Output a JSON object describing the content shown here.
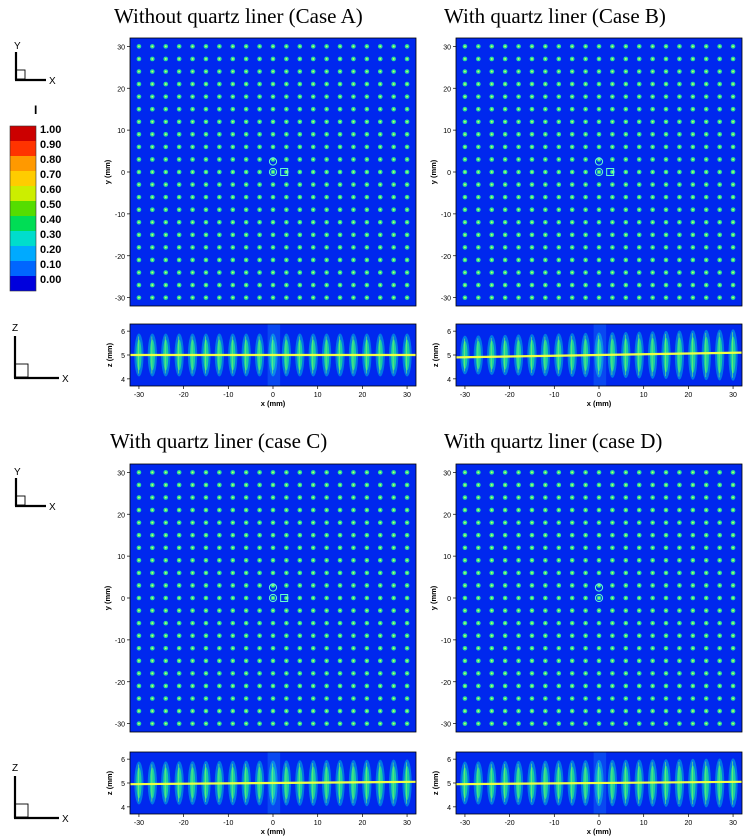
{
  "titles": {
    "a": "Without quartz liner (Case A)",
    "b": "With quartz liner (Case B)",
    "c": "With quartz liner (case C)",
    "d": "With quartz liner (case D)"
  },
  "axes_triad_top": {
    "vertical": "Y",
    "horizontal": "X"
  },
  "axes_triad_bottom": {
    "vertical": "Z",
    "horizontal": "X"
  },
  "colorbar": {
    "label": "I",
    "ticks": [
      "1.00",
      "0.90",
      "0.80",
      "0.70",
      "0.60",
      "0.50",
      "0.40",
      "0.30",
      "0.20",
      "0.10",
      "0.00"
    ],
    "colors": [
      "#cc0000",
      "#ff3300",
      "#ff9900",
      "#ffcc00",
      "#ccee00",
      "#55dd00",
      "#00dd55",
      "#00ddcc",
      "#00aaff",
      "#0066ff",
      "#0000dd"
    ]
  },
  "colors": {
    "background": "#0028ee",
    "spot": "#33ff88",
    "spot_core": "#ccff66",
    "center_line": "#eeff44"
  },
  "chart_data": [
    {
      "id": "a",
      "type": "heatmap",
      "title": "Without quartz liner (Case A)",
      "variable": "I",
      "xlabel": "x (mm)",
      "ylabel": "y (mm)",
      "xlim": [
        -32,
        32
      ],
      "ylim": [
        -32,
        32
      ],
      "xticks": [
        "-30",
        "-20",
        "-10",
        "0",
        "10",
        "20",
        "30"
      ],
      "yticks": [
        "30",
        "20",
        "10",
        "0",
        "-10",
        "-20",
        "-30"
      ],
      "spot_pitch_mm": 3,
      "spot_grid": "21 x 21",
      "center_markers": [
        [
          0,
          2.5
        ],
        [
          0,
          0
        ],
        [
          2.5,
          0
        ]
      ],
      "profile": {
        "type": "heatmap",
        "xlabel": "x (mm)",
        "ylabel": "z (mm)",
        "xlim": [
          -32,
          32
        ],
        "ylim": [
          3.7,
          6.3
        ],
        "xticks": [
          "-30",
          "-20",
          "-10",
          "0",
          "10",
          "20",
          "30"
        ],
        "yticks": [
          "6",
          "5",
          "4"
        ],
        "focal_plane_z": 5.0,
        "spread": [
          1.0,
          1.0
        ],
        "line_tilt": [
          0,
          0
        ]
      }
    },
    {
      "id": "b",
      "type": "heatmap",
      "title": "With quartz liner (Case B)",
      "variable": "I",
      "xlabel": "x (mm)",
      "ylabel": "y (mm)",
      "xlim": [
        -32,
        32
      ],
      "ylim": [
        -32,
        32
      ],
      "xticks": [
        "-30",
        "-20",
        "-10",
        "0",
        "10",
        "20",
        "30"
      ],
      "yticks": [
        "30",
        "20",
        "10",
        "0",
        "-10",
        "-20",
        "-30"
      ],
      "spot_pitch_mm": 3,
      "spot_grid": "21 x 21",
      "center_markers": [
        [
          0,
          2.5
        ],
        [
          0,
          0
        ],
        [
          2.5,
          0
        ]
      ],
      "profile": {
        "type": "heatmap",
        "xlabel": "x (mm)",
        "ylabel": "z (mm)",
        "xlim": [
          -32,
          32
        ],
        "ylim": [
          3.7,
          6.3
        ],
        "xticks": [
          "-30",
          "-20",
          "-10",
          "0",
          "10",
          "20",
          "30"
        ],
        "yticks": [
          "6",
          "5",
          "4"
        ],
        "focal_plane_z": 5.0,
        "spread": [
          0.9,
          1.2
        ],
        "line_tilt": [
          -0.1,
          0.1
        ]
      }
    },
    {
      "id": "c",
      "type": "heatmap",
      "title": "With quartz liner (case C)",
      "variable": "I",
      "xlabel": "x (mm)",
      "ylabel": "y (mm)",
      "xlim": [
        -32,
        32
      ],
      "ylim": [
        -32,
        32
      ],
      "xticks": [
        "-30",
        "-20",
        "-10",
        "0",
        "10",
        "20",
        "30"
      ],
      "yticks": [
        "30",
        "20",
        "10",
        "0",
        "-10",
        "-20",
        "-30"
      ],
      "spot_pitch_mm": 3,
      "spot_grid": "21 x 21",
      "center_markers": [
        [
          0,
          2.5
        ],
        [
          0,
          0
        ],
        [
          2.5,
          0
        ]
      ],
      "profile": {
        "type": "heatmap",
        "xlabel": "x (mm)",
        "ylabel": "z (mm)",
        "xlim": [
          -32,
          32
        ],
        "ylim": [
          3.7,
          6.3
        ],
        "xticks": [
          "-30",
          "-20",
          "-10",
          "0",
          "10",
          "20",
          "30"
        ],
        "yticks": [
          "6",
          "5",
          "4"
        ],
        "focal_plane_z": 5.0,
        "spread": [
          1.0,
          1.1
        ],
        "line_tilt": [
          -0.05,
          0.05
        ]
      }
    },
    {
      "id": "d",
      "type": "heatmap",
      "title": "With quartz liner (case D)",
      "variable": "I",
      "xlabel": "x (mm)",
      "ylabel": "y (mm)",
      "xlim": [
        -32,
        32
      ],
      "ylim": [
        -32,
        32
      ],
      "xticks": [
        "-30",
        "-20",
        "-10",
        "0",
        "10",
        "20",
        "30"
      ],
      "yticks": [
        "30",
        "20",
        "10",
        "0",
        "-10",
        "-20",
        "-30"
      ],
      "spot_pitch_mm": 3,
      "spot_grid": "21 x 21",
      "center_markers": [
        [
          0,
          2.5
        ],
        [
          0,
          0
        ]
      ],
      "profile": {
        "type": "heatmap",
        "xlabel": "x (mm)",
        "ylabel": "z (mm)",
        "xlim": [
          -32,
          32
        ],
        "ylim": [
          3.7,
          6.3
        ],
        "xticks": [
          "-30",
          "-20",
          "-10",
          "0",
          "10",
          "20",
          "30"
        ],
        "yticks": [
          "6",
          "5",
          "4"
        ],
        "focal_plane_z": 5.0,
        "spread": [
          1.0,
          1.15
        ],
        "line_tilt": [
          -0.05,
          0.05
        ]
      }
    }
  ]
}
